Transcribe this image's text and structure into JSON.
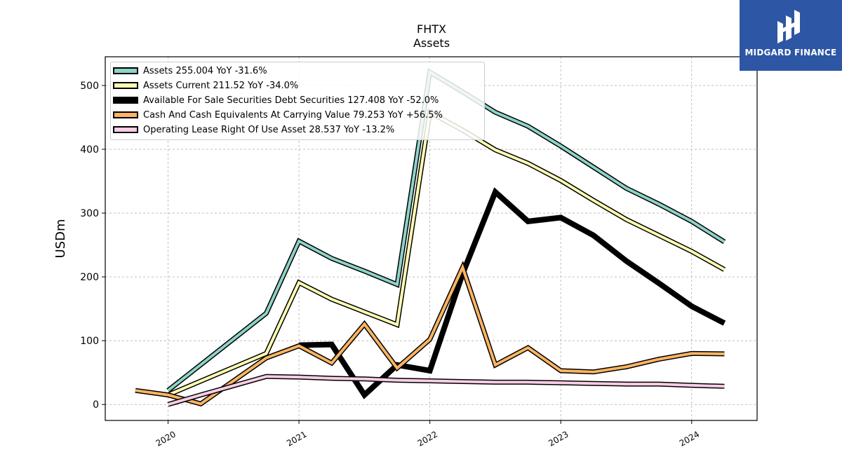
{
  "chart_data": {
    "type": "line",
    "title": "FHTX",
    "subtitle": "Assets",
    "ylabel": "USDm",
    "xlabel": "",
    "xlim": [
      2019.52,
      2024.5
    ],
    "ylim": [
      -25,
      545
    ],
    "x_ticks": [
      2020,
      2021,
      2022,
      2023,
      2024
    ],
    "x_tick_labels": [
      "2020",
      "2021",
      "2022",
      "2023",
      "2024"
    ],
    "y_ticks": [
      0,
      100,
      200,
      300,
      400,
      500
    ],
    "y_tick_labels": [
      "0",
      "100",
      "200",
      "300",
      "400",
      "500"
    ],
    "grid": true,
    "legend_position": "top-left",
    "series": [
      {
        "name": "Assets",
        "legend": "Assets  255.004 YoY -31.6%",
        "color": "#8dd3c7",
        "width": 4,
        "points": [
          [
            2020.0,
            22
          ],
          [
            2020.75,
            143
          ],
          [
            2021.0,
            256
          ],
          [
            2021.25,
            229
          ],
          [
            2021.5,
            209
          ],
          [
            2021.75,
            188
          ],
          [
            2022.0,
            521
          ],
          [
            2022.25,
            490
          ],
          [
            2022.5,
            458
          ],
          [
            2022.75,
            436
          ],
          [
            2023.0,
            405
          ],
          [
            2023.25,
            372
          ],
          [
            2023.5,
            339
          ],
          [
            2023.75,
            314
          ],
          [
            2024.0,
            287
          ],
          [
            2024.25,
            255
          ]
        ]
      },
      {
        "name": "Assets Current",
        "legend": "Assets Current  211.52 YoY -34.0%",
        "color": "#ffffb3",
        "width": 4,
        "points": [
          [
            2020.0,
            15
          ],
          [
            2020.75,
            80
          ],
          [
            2021.0,
            191
          ],
          [
            2021.25,
            165
          ],
          [
            2021.5,
            145
          ],
          [
            2021.75,
            125
          ],
          [
            2022.0,
            458
          ],
          [
            2022.25,
            430
          ],
          [
            2022.5,
            399
          ],
          [
            2022.75,
            378
          ],
          [
            2023.0,
            351
          ],
          [
            2023.25,
            320
          ],
          [
            2023.5,
            290
          ],
          [
            2023.75,
            265
          ],
          [
            2024.0,
            240
          ],
          [
            2024.25,
            211.5
          ]
        ]
      },
      {
        "name": "Available For Sale Securities Debt Securities",
        "legend": "Available For Sale Securities Debt Securities  127.408 YoY -52.0%",
        "color": "#000000",
        "width": 8,
        "points": [
          [
            2021.0,
            93
          ],
          [
            2021.25,
            94
          ],
          [
            2021.5,
            15
          ],
          [
            2021.75,
            62
          ],
          [
            2022.0,
            53
          ],
          [
            2022.25,
            205
          ],
          [
            2022.5,
            333
          ],
          [
            2022.75,
            287
          ],
          [
            2023.0,
            293
          ],
          [
            2023.25,
            265
          ],
          [
            2023.5,
            225
          ],
          [
            2023.75,
            190
          ],
          [
            2024.0,
            154
          ],
          [
            2024.25,
            127.4
          ]
        ]
      },
      {
        "name": "Cash And Cash Equivalents At Carrying Value",
        "legend": "Cash And Cash Equivalents At Carrying Value  79.253 YoY +56.5%",
        "color": "#fdb462",
        "width": 4,
        "points": [
          [
            2019.75,
            22
          ],
          [
            2020.0,
            15
          ],
          [
            2020.25,
            1
          ],
          [
            2020.75,
            73
          ],
          [
            2021.0,
            92
          ],
          [
            2021.25,
            65
          ],
          [
            2021.5,
            126
          ],
          [
            2021.75,
            57
          ],
          [
            2022.0,
            102
          ],
          [
            2022.25,
            215
          ],
          [
            2022.5,
            62
          ],
          [
            2022.75,
            89
          ],
          [
            2023.0,
            53
          ],
          [
            2023.25,
            51
          ],
          [
            2023.5,
            59
          ],
          [
            2023.75,
            71
          ],
          [
            2024.0,
            80
          ],
          [
            2024.25,
            79.3
          ]
        ]
      },
      {
        "name": "Operating Lease Right Of Use Asset",
        "legend": "Operating Lease Right Of Use Asset  28.537 YoY -13.2%",
        "color": "#fccde5",
        "width": 4,
        "points": [
          [
            2020.0,
            0
          ],
          [
            2020.25,
            15
          ],
          [
            2020.75,
            44
          ],
          [
            2021.0,
            43
          ],
          [
            2021.25,
            41
          ],
          [
            2021.5,
            40
          ],
          [
            2021.75,
            38
          ],
          [
            2022.0,
            37
          ],
          [
            2022.25,
            36
          ],
          [
            2022.5,
            35
          ],
          [
            2022.75,
            35
          ],
          [
            2023.0,
            34
          ],
          [
            2023.25,
            33
          ],
          [
            2023.5,
            32
          ],
          [
            2023.75,
            32
          ],
          [
            2024.0,
            30
          ],
          [
            2024.25,
            28.5
          ]
        ]
      }
    ]
  },
  "logo": {
    "text": "MIDGARD FINANCE",
    "color": "#2d56a4"
  }
}
